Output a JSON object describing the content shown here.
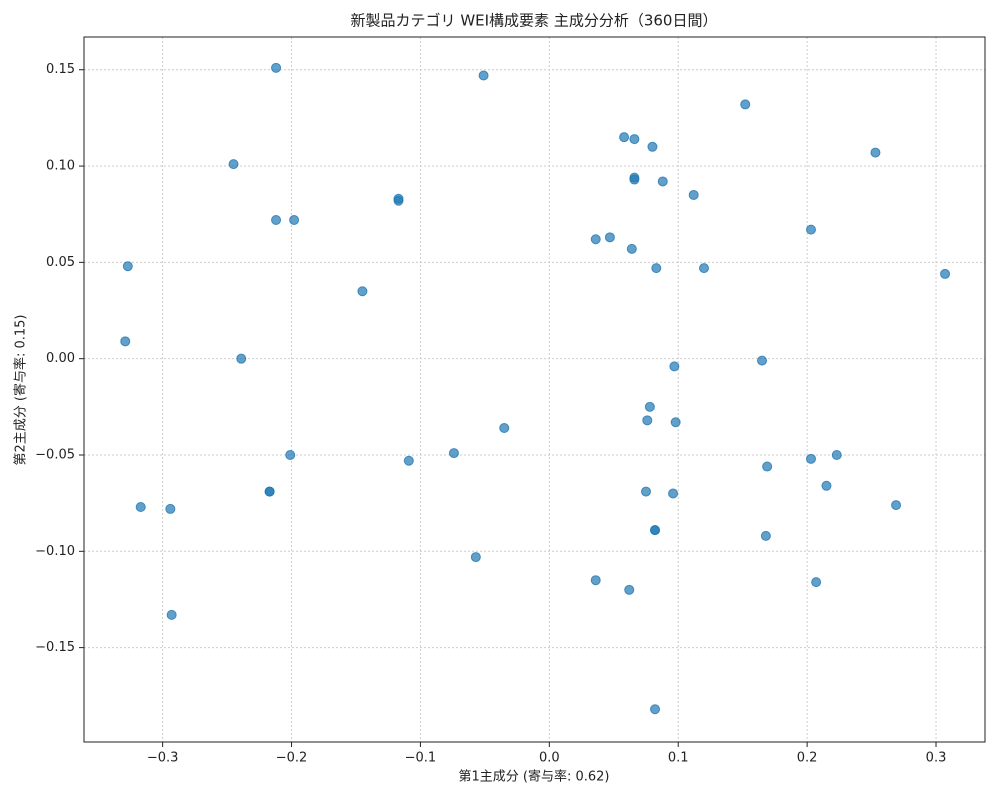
{
  "chart_data": {
    "type": "scatter",
    "title": "新製品カテゴリ WEI構成要素 主成分分析（360日間）",
    "x_label": "第1主成分 (寄与率: 0.62)",
    "y_label": "第2主成分 (寄与率: 0.15)",
    "color": "#1f77b4",
    "grid": true,
    "xlim": [
      -0.361,
      0.338
    ],
    "ylim": [
      -0.199,
      0.167
    ],
    "xticks": [
      {
        "value": -0.3,
        "label": "−0.3"
      },
      {
        "value": -0.2,
        "label": "−0.2"
      },
      {
        "value": -0.1,
        "label": "−0.1"
      },
      {
        "value": 0,
        "label": "0.0"
      },
      0.1,
      0.2,
      0.3
    ],
    "yticks": [
      {
        "value": -0.15,
        "label": "−0.15"
      },
      {
        "value": -0.1,
        "label": "−0.10"
      },
      {
        "value": -0.05,
        "label": "−0.05"
      },
      {
        "value": 0,
        "label": "0.00"
      },
      0.05,
      {
        "value": 0.1,
        "label": "0.10"
      },
      0.15
    ],
    "x": [
      -0.212,
      -0.051,
      0.152,
      0.058,
      0.066,
      0.08,
      0.253,
      -0.245,
      0.066,
      0.066,
      0.088,
      0.112,
      -0.117,
      -0.117,
      -0.212,
      -0.198,
      0.203,
      0.036,
      0.047,
      0.064,
      -0.327,
      0.083,
      0.12,
      0.307,
      -0.145,
      -0.329,
      -0.239,
      0.165,
      0.097,
      0.078,
      0.076,
      0.098,
      -0.035,
      -0.074,
      -0.201,
      0.223,
      0.203,
      -0.109,
      0.169,
      0.215,
      -0.217,
      -0.217,
      0.075,
      0.096,
      -0.317,
      0.269,
      -0.294,
      0.082,
      0.082,
      0.168,
      -0.057,
      0.036,
      0.207,
      0.062,
      -0.293,
      0.082
    ],
    "values": [
      0.151,
      0.147,
      0.132,
      0.115,
      0.114,
      0.11,
      0.107,
      0.101,
      0.094,
      0.093,
      0.092,
      0.085,
      0.083,
      0.082,
      0.072,
      0.072,
      0.067,
      0.062,
      0.063,
      0.057,
      0.048,
      0.047,
      0.047,
      0.044,
      0.035,
      0.009,
      0.0,
      -0.001,
      -0.004,
      -0.025,
      -0.032,
      -0.033,
      -0.036,
      -0.049,
      -0.05,
      -0.05,
      -0.052,
      -0.053,
      -0.056,
      -0.066,
      -0.069,
      -0.069,
      -0.069,
      -0.07,
      -0.077,
      -0.076,
      -0.078,
      -0.089,
      -0.089,
      -0.092,
      -0.103,
      -0.115,
      -0.116,
      -0.12,
      -0.133,
      -0.182
    ]
  }
}
